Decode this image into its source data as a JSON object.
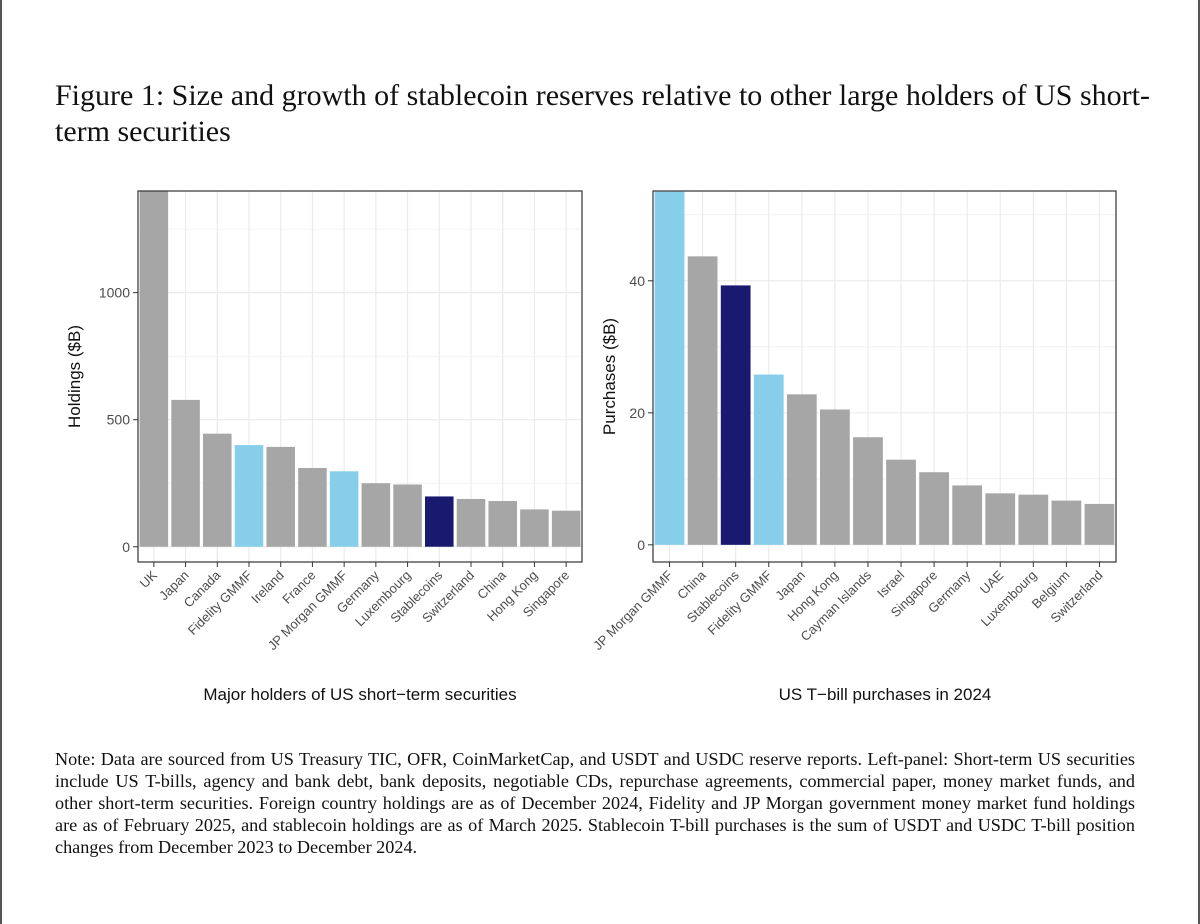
{
  "figure": {
    "title": "Figure 1: Size and growth of stablecoin reserves relative to other large holders of US short-term securities",
    "note": "Note: Data are sourced from US Treasury TIC, OFR, CoinMarketCap, and USDT and USDC reserve reports. Left-panel: Short-term US securities include US T-bills, agency and bank debt, bank deposits, negotiable CDs, repurchase agreements, commercial paper, money market funds, and other short-term securities. Foreign country holdings are as of December 2024, Fidelity and JP Morgan government money market fund holdings are as of February 2025, and stablecoin holdings are as of March 2025. Stablecoin T-bill purchases is the sum of USDT and USDC T-bill position changes from December 2023 to December 2024."
  },
  "colors": {
    "country": "#a6a6a6",
    "mmf": "#87ceeb",
    "stablecoin": "#191970",
    "panel_border": "#333333",
    "grid": "#ebebeb"
  },
  "chart_data": [
    {
      "type": "bar",
      "xlabel": "Major holders of US short−term securities",
      "ylabel": "Holdings ($B)",
      "ylim": [
        -60,
        1400
      ],
      "yticks": [
        0,
        500,
        1000
      ],
      "grid": true,
      "categories": [
        "UK",
        "Japan",
        "Canada",
        "Fidelity GMMF",
        "Ireland",
        "France",
        "JP Morgan GMMF",
        "Germany",
        "Luxembourg",
        "Stablecoins",
        "Switzerland",
        "China",
        "Hong Kong",
        "Singapore"
      ],
      "values": [
        1400,
        578,
        445,
        400,
        393,
        310,
        297,
        250,
        245,
        198,
        188,
        180,
        147,
        142
      ],
      "groups": [
        "country",
        "country",
        "country",
        "mmf",
        "country",
        "country",
        "mmf",
        "country",
        "country",
        "stablecoin",
        "country",
        "country",
        "country",
        "country"
      ]
    },
    {
      "type": "bar",
      "xlabel": "US T−bill purchases in 2024",
      "ylabel": "Purchases ($B)",
      "ylim": [
        -2.6,
        53.6
      ],
      "yticks": [
        0,
        20,
        40
      ],
      "grid": true,
      "categories": [
        "JP Morgan GMMF",
        "China",
        "Stablecoins",
        "Fidelity GMMF",
        "Japan",
        "Hong Kong",
        "Cayman Islands",
        "Israel",
        "Singapore",
        "Germany",
        "UAE",
        "Luxembourg",
        "Belgium",
        "Switzerland"
      ],
      "values": [
        53.5,
        43.7,
        39.3,
        25.8,
        22.8,
        20.5,
        16.3,
        12.9,
        11.0,
        9.0,
        7.8,
        7.6,
        6.7,
        6.2
      ],
      "groups": [
        "mmf",
        "country",
        "stablecoin",
        "mmf",
        "country",
        "country",
        "country",
        "country",
        "country",
        "country",
        "country",
        "country",
        "country",
        "country"
      ]
    }
  ]
}
